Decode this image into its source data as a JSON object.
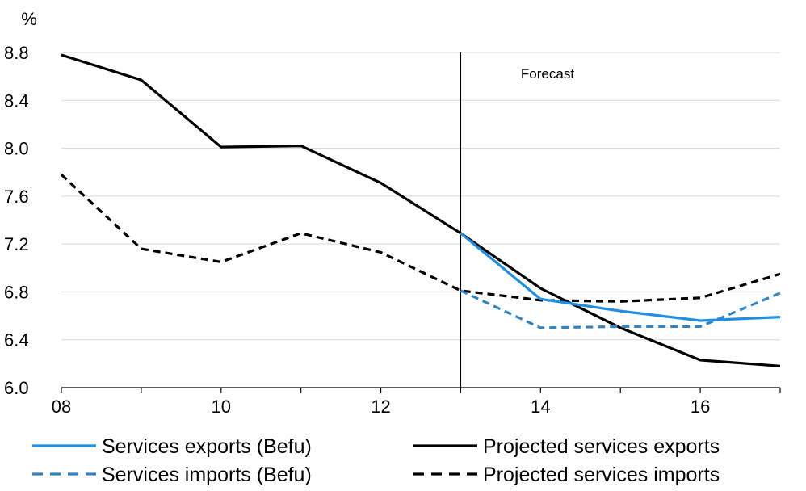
{
  "chart_data": {
    "type": "line",
    "ylabel": "%",
    "annotation": "Forecast",
    "forecast_start": 13,
    "xlim": [
      8,
      17
    ],
    "ylim": [
      6.0,
      8.8
    ],
    "xticks": [
      8,
      10,
      12,
      14,
      16
    ],
    "xtick_labels": [
      "08",
      "10",
      "12",
      "14",
      "16"
    ],
    "yticks": [
      6.0,
      6.4,
      6.8,
      7.2,
      7.6,
      8.0,
      8.4,
      8.8
    ],
    "ytick_labels": [
      "6.0",
      "6.4",
      "6.8",
      "7.2",
      "7.6",
      "8.0",
      "8.4",
      "8.8"
    ],
    "grid": "horizontal",
    "legend_position": "bottom",
    "series": [
      {
        "name": "Services exports (Befu)",
        "color": "#1f8fe6",
        "style": "solid",
        "x": [
          13,
          14,
          15,
          16,
          17
        ],
        "values": [
          7.29,
          6.74,
          6.64,
          6.56,
          6.59
        ]
      },
      {
        "name": "Projected services exports",
        "color": "#000000",
        "style": "solid",
        "x": [
          8,
          9,
          10,
          11,
          12,
          13,
          14,
          15,
          16,
          17
        ],
        "values": [
          8.78,
          8.57,
          8.01,
          8.02,
          7.71,
          7.29,
          6.83,
          6.5,
          6.23,
          6.18
        ]
      },
      {
        "name": "Services imports (Befu)",
        "color": "#2e86c8",
        "style": "dashed",
        "x": [
          13,
          14,
          15,
          16,
          17
        ],
        "values": [
          6.81,
          6.5,
          6.51,
          6.51,
          6.79
        ]
      },
      {
        "name": "Projected services imports",
        "color": "#000000",
        "style": "dashed",
        "x": [
          8,
          9,
          10,
          11,
          12,
          13,
          14,
          15,
          16,
          17
        ],
        "values": [
          7.78,
          7.16,
          7.05,
          7.29,
          7.13,
          6.81,
          6.73,
          6.72,
          6.75,
          6.95
        ]
      }
    ]
  }
}
